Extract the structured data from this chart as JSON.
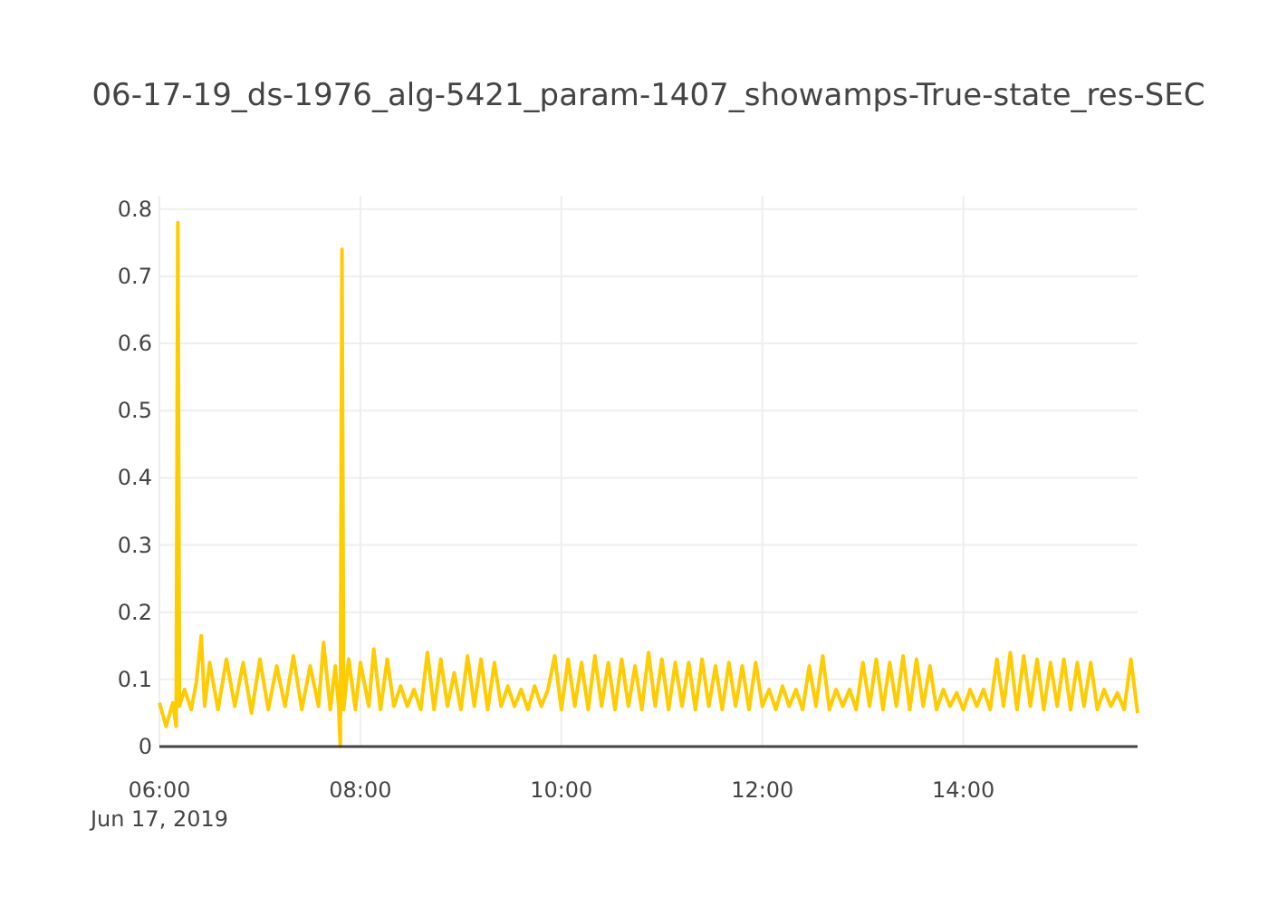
{
  "chart_data": {
    "type": "line",
    "title": "06-17-19_ds-1976_alg-5421_param-1407_showamps-True-state_res-SEC",
    "xlim": [
      "2019-06-17T06:00",
      "2019-06-17T15:44"
    ],
    "xticks": [
      {
        "value": "2019-06-17T06:00",
        "label": "06:00\nJun 17, 2019"
      },
      {
        "value": "2019-06-17T08:00",
        "label": "08:00"
      },
      {
        "value": "2019-06-17T10:00",
        "label": "10:00"
      },
      {
        "value": "2019-06-17T12:00",
        "label": "12:00"
      },
      {
        "value": "2019-06-17T14:00",
        "label": "14:00"
      }
    ],
    "ylim": [
      0,
      0.82
    ],
    "yticks": [
      0,
      0.1,
      0.2,
      0.3,
      0.4,
      0.5,
      0.6,
      0.7,
      0.8
    ],
    "grid": true,
    "marker": "none",
    "line_style": "solid",
    "series": [
      {
        "color": "#ffcc00",
        "x": [
          "2019-06-17T06:00",
          "2019-06-17T06:04",
          "2019-06-17T06:08",
          "2019-06-17T06:10",
          "2019-06-17T06:11",
          "2019-06-17T06:12",
          "2019-06-17T06:15",
          "2019-06-17T06:19",
          "2019-06-17T06:22",
          "2019-06-17T06:25",
          "2019-06-17T06:27",
          "2019-06-17T06:30",
          "2019-06-17T06:35",
          "2019-06-17T06:40",
          "2019-06-17T06:45",
          "2019-06-17T06:50",
          "2019-06-17T06:55",
          "2019-06-17T07:00",
          "2019-06-17T07:05",
          "2019-06-17T07:10",
          "2019-06-17T07:15",
          "2019-06-17T07:20",
          "2019-06-17T07:25",
          "2019-06-17T07:30",
          "2019-06-17T07:35",
          "2019-06-17T07:38",
          "2019-06-17T07:42",
          "2019-06-17T07:45",
          "2019-06-17T07:47",
          "2019-06-17T07:48",
          "2019-06-17T07:49",
          "2019-06-17T07:50",
          "2019-06-17T07:53",
          "2019-06-17T07:57",
          "2019-06-17T08:00",
          "2019-06-17T08:05",
          "2019-06-17T08:08",
          "2019-06-17T08:12",
          "2019-06-17T08:16",
          "2019-06-17T08:20",
          "2019-06-17T08:24",
          "2019-06-17T08:28",
          "2019-06-17T08:32",
          "2019-06-17T08:36",
          "2019-06-17T08:40",
          "2019-06-17T08:44",
          "2019-06-17T08:48",
          "2019-06-17T08:52",
          "2019-06-17T08:56",
          "2019-06-17T09:00",
          "2019-06-17T09:04",
          "2019-06-17T09:08",
          "2019-06-17T09:12",
          "2019-06-17T09:16",
          "2019-06-17T09:20",
          "2019-06-17T09:24",
          "2019-06-17T09:28",
          "2019-06-17T09:32",
          "2019-06-17T09:36",
          "2019-06-17T09:40",
          "2019-06-17T09:44",
          "2019-06-17T09:48",
          "2019-06-17T09:52",
          "2019-06-17T09:56",
          "2019-06-17T10:00",
          "2019-06-17T10:04",
          "2019-06-17T10:08",
          "2019-06-17T10:12",
          "2019-06-17T10:16",
          "2019-06-17T10:20",
          "2019-06-17T10:24",
          "2019-06-17T10:28",
          "2019-06-17T10:32",
          "2019-06-17T10:36",
          "2019-06-17T10:40",
          "2019-06-17T10:44",
          "2019-06-17T10:48",
          "2019-06-17T10:52",
          "2019-06-17T10:56",
          "2019-06-17T11:00",
          "2019-06-17T11:04",
          "2019-06-17T11:08",
          "2019-06-17T11:12",
          "2019-06-17T11:16",
          "2019-06-17T11:20",
          "2019-06-17T11:24",
          "2019-06-17T11:28",
          "2019-06-17T11:32",
          "2019-06-17T11:36",
          "2019-06-17T11:40",
          "2019-06-17T11:44",
          "2019-06-17T11:48",
          "2019-06-17T11:52",
          "2019-06-17T11:56",
          "2019-06-17T12:00",
          "2019-06-17T12:04",
          "2019-06-17T12:08",
          "2019-06-17T12:12",
          "2019-06-17T12:16",
          "2019-06-17T12:20",
          "2019-06-17T12:24",
          "2019-06-17T12:28",
          "2019-06-17T12:32",
          "2019-06-17T12:36",
          "2019-06-17T12:40",
          "2019-06-17T12:44",
          "2019-06-17T12:48",
          "2019-06-17T12:52",
          "2019-06-17T12:56",
          "2019-06-17T13:00",
          "2019-06-17T13:04",
          "2019-06-17T13:08",
          "2019-06-17T13:12",
          "2019-06-17T13:16",
          "2019-06-17T13:20",
          "2019-06-17T13:24",
          "2019-06-17T13:28",
          "2019-06-17T13:32",
          "2019-06-17T13:36",
          "2019-06-17T13:40",
          "2019-06-17T13:44",
          "2019-06-17T13:48",
          "2019-06-17T13:52",
          "2019-06-17T13:56",
          "2019-06-17T14:00",
          "2019-06-17T14:04",
          "2019-06-17T14:08",
          "2019-06-17T14:12",
          "2019-06-17T14:16",
          "2019-06-17T14:20",
          "2019-06-17T14:24",
          "2019-06-17T14:28",
          "2019-06-17T14:32",
          "2019-06-17T14:36",
          "2019-06-17T14:40",
          "2019-06-17T14:44",
          "2019-06-17T14:48",
          "2019-06-17T14:52",
          "2019-06-17T14:56",
          "2019-06-17T15:00",
          "2019-06-17T15:04",
          "2019-06-17T15:08",
          "2019-06-17T15:12",
          "2019-06-17T15:16",
          "2019-06-17T15:20",
          "2019-06-17T15:24",
          "2019-06-17T15:28",
          "2019-06-17T15:32",
          "2019-06-17T15:36",
          "2019-06-17T15:40",
          "2019-06-17T15:44"
        ],
        "values": [
          0.065,
          0.03,
          0.065,
          0.03,
          0.78,
          0.06,
          0.085,
          0.055,
          0.095,
          0.165,
          0.06,
          0.125,
          0.055,
          0.13,
          0.06,
          0.125,
          0.05,
          0.13,
          0.055,
          0.12,
          0.06,
          0.135,
          0.055,
          0.12,
          0.06,
          0.155,
          0.055,
          0.12,
          0.06,
          0,
          0.74,
          0.055,
          0.13,
          0.055,
          0.125,
          0.06,
          0.145,
          0.055,
          0.13,
          0.06,
          0.09,
          0.06,
          0.085,
          0.055,
          0.14,
          0.055,
          0.13,
          0.06,
          0.11,
          0.055,
          0.135,
          0.06,
          0.13,
          0.055,
          0.125,
          0.06,
          0.09,
          0.06,
          0.085,
          0.055,
          0.09,
          0.06,
          0.085,
          0.135,
          0.055,
          0.13,
          0.06,
          0.125,
          0.055,
          0.135,
          0.06,
          0.125,
          0.055,
          0.13,
          0.06,
          0.12,
          0.055,
          0.14,
          0.06,
          0.13,
          0.055,
          0.125,
          0.06,
          0.125,
          0.055,
          0.13,
          0.06,
          0.12,
          0.055,
          0.125,
          0.06,
          0.12,
          0.055,
          0.125,
          0.06,
          0.085,
          0.055,
          0.09,
          0.06,
          0.085,
          0.055,
          0.12,
          0.06,
          0.135,
          0.055,
          0.085,
          0.06,
          0.085,
          0.055,
          0.125,
          0.06,
          0.13,
          0.055,
          0.125,
          0.06,
          0.135,
          0.055,
          0.13,
          0.06,
          0.12,
          0.055,
          0.085,
          0.06,
          0.08,
          0.055,
          0.085,
          0.06,
          0.085,
          0.055,
          0.13,
          0.06,
          0.14,
          0.055,
          0.135,
          0.06,
          0.13,
          0.055,
          0.125,
          0.06,
          0.13,
          0.055,
          0.125,
          0.06,
          0.125,
          0.055,
          0.085,
          0.06,
          0.08,
          0.055,
          0.13,
          0.05
        ]
      }
    ]
  }
}
